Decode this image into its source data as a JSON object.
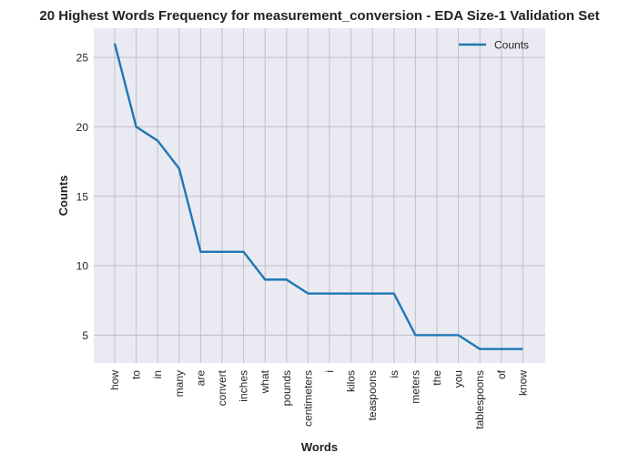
{
  "chart_data": {
    "type": "line",
    "title": "20 Highest Words Frequency for measurement_conversion - EDA Size-1 Validation Set",
    "xlabel": "Words",
    "ylabel": "Counts",
    "categories": [
      "how",
      "to",
      "in",
      "many",
      "are",
      "convert",
      "inches",
      "what",
      "pounds",
      "centimeters",
      "i",
      "kilos",
      "teaspoons",
      "is",
      "meters",
      "the",
      "you",
      "tablespoons",
      "of",
      "know"
    ],
    "series": [
      {
        "name": "Counts",
        "color": "#1f77b4",
        "values": [
          26,
          20,
          19,
          17,
          11,
          11,
          11,
          9,
          9,
          8,
          8,
          8,
          8,
          8,
          5,
          5,
          5,
          4,
          4,
          4
        ]
      }
    ],
    "yticks": [
      5,
      10,
      15,
      20,
      25
    ],
    "ylim": [
      3.0,
      27.1
    ],
    "grid": true,
    "legend_position": "top-right",
    "background": "#eaeaf2",
    "grid_color": "#c0c0c8"
  }
}
